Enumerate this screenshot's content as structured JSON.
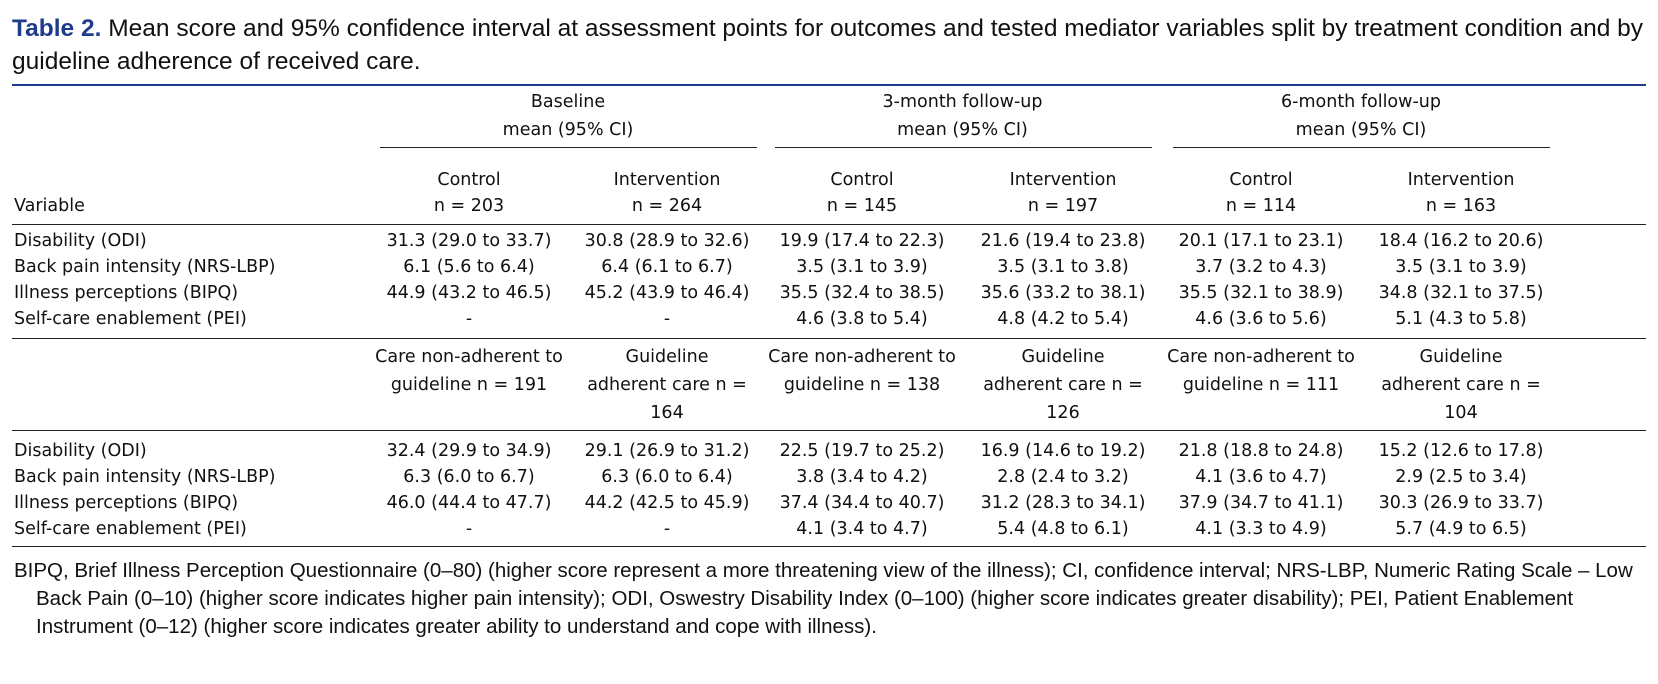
{
  "caption": {
    "label": "Table 2.",
    "text": "Mean score and 95% confidence interval at assessment points for outcomes and tested mediator variables split by treatment condition and by guideline adherence of received care."
  },
  "table": {
    "groups": [
      [
        "Baseline",
        "mean (95% CI)"
      ],
      [
        "3-month follow-up",
        "mean (95% CI)"
      ],
      [
        "6-month follow-up",
        "mean (95% CI)"
      ]
    ],
    "sections": [
      {
        "label": "Variable",
        "headers": [
          [
            "Control",
            "n = 203"
          ],
          [
            "Intervention",
            "n = 264"
          ],
          [
            "Control",
            "n = 145"
          ],
          [
            "Intervention",
            "n = 197"
          ],
          [
            "Control",
            "n = 114"
          ],
          [
            "Intervention",
            "n = 163"
          ]
        ],
        "rows": [
          [
            "Disability (ODI)",
            "31.3 (29.0 to 33.7)",
            "30.8 (28.9 to 32.6)",
            "19.9 (17.4 to 22.3)",
            "21.6 (19.4 to 23.8)",
            "20.1 (17.1 to 23.1)",
            "18.4 (16.2 to 20.6)"
          ],
          [
            "Back pain intensity (NRS-LBP)",
            "6.1 (5.6 to 6.4)",
            "6.4 (6.1 to 6.7)",
            "3.5 (3.1 to 3.9)",
            "3.5 (3.1 to 3.8)",
            "3.7 (3.2 to 4.3)",
            "3.5 (3.1 to 3.9)"
          ],
          [
            "Illness perceptions (BIPQ)",
            "44.9 (43.2 to 46.5)",
            "45.2 (43.9 to 46.4)",
            "35.5 (32.4 to 38.5)",
            "35.6 (33.2 to 38.1)",
            "35.5 (32.1 to 38.9)",
            "34.8 (32.1 to 37.5)"
          ],
          [
            "Self-care enablement (PEI)",
            "-",
            "-",
            "4.6 (3.8 to 5.4)",
            "4.8 (4.2 to 5.4)",
            "4.6 (3.6 to 5.6)",
            "5.1 (4.3 to 5.8)"
          ]
        ]
      },
      {
        "headers": [
          [
            "Care non-adherent to",
            "guideline n = 191"
          ],
          [
            "Guideline",
            "adherent care n =",
            "164"
          ],
          [
            "Care non-adherent to",
            "guideline n = 138"
          ],
          [
            "Guideline",
            "adherent care n =",
            "126"
          ],
          [
            "Care non-adherent to",
            "guideline n = 111"
          ],
          [
            "Guideline",
            "adherent care n =",
            "104"
          ]
        ],
        "rows": [
          [
            "Disability (ODI)",
            "32.4 (29.9 to 34.9)",
            "29.1 (26.9 to 31.2)",
            "22.5 (19.7 to 25.2)",
            "16.9 (14.6 to 19.2)",
            "21.8 (18.8 to 24.8)",
            "15.2 (12.6 to 17.8)"
          ],
          [
            "Back pain intensity (NRS-LBP)",
            "6.3 (6.0 to 6.7)",
            "6.3 (6.0 to 6.4)",
            "3.8 (3.4 to 4.2)",
            "2.8 (2.4 to 3.2)",
            "4.1 (3.6 to 4.7)",
            "2.9 (2.5 to 3.4)"
          ],
          [
            "Illness perceptions (BIPQ)",
            "46.0 (44.4 to 47.7)",
            "44.2 (42.5 to 45.9)",
            "37.4 (34.4 to 40.7)",
            "31.2 (28.3 to 34.1)",
            "37.9 (34.7 to 41.1)",
            "30.3 (26.9 to 33.7)"
          ],
          [
            "Self-care enablement (PEI)",
            "-",
            "-",
            "4.1 (3.4 to 4.7)",
            "5.4 (4.8 to 6.1)",
            "4.1 (3.3 to 4.9)",
            "5.7 (4.9 to 6.5)"
          ]
        ]
      }
    ]
  },
  "footnote": "BIPQ, Brief Illness Perception Questionnaire (0–80) (higher score represent a more threatening view of the illness); CI, confidence interval; NRS-LBP, Numeric Rating Scale – Low Back Pain (0–10) (higher score indicates higher pain intensity); ODI, Oswestry Disability Index (0–100) (higher score indicates greater disability); PEI, Patient Enablement Instrument (0–12) (higher score indicates greater ability to understand and cope with illness)."
}
